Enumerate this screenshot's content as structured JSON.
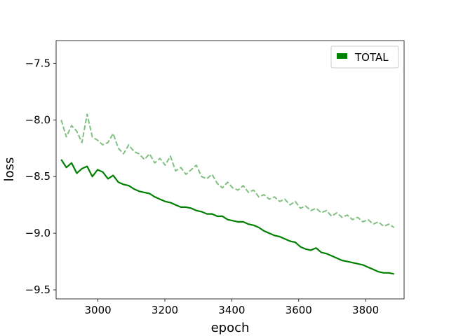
{
  "chart_data": {
    "type": "line",
    "title": "",
    "xlabel": "epoch",
    "ylabel": "loss",
    "xlim": [
      2875,
      3915
    ],
    "ylim": [
      -9.58,
      -7.3
    ],
    "xticks": [
      3000,
      3200,
      3400,
      3600,
      3800
    ],
    "yticks": [
      -9.5,
      -9.0,
      -8.5,
      -8.0,
      -7.5
    ],
    "xtick_labels": [
      "3000",
      "3200",
      "3400",
      "3600",
      "3800"
    ],
    "ytick_labels": [
      "−9.5",
      "−9.0",
      "−8.5",
      "−8.0",
      "−7.5"
    ],
    "grid": false,
    "legend": {
      "position": "top-right",
      "entries": [
        "TOTAL"
      ]
    },
    "series": [
      {
        "name": "TOTAL",
        "style": "solid",
        "color": "#008000",
        "x_start": 2890,
        "x_end": 3885,
        "values": [
          -8.35,
          -8.42,
          -8.38,
          -8.47,
          -8.43,
          -8.41,
          -8.5,
          -8.44,
          -8.46,
          -8.52,
          -8.49,
          -8.55,
          -8.57,
          -8.58,
          -8.61,
          -8.63,
          -8.64,
          -8.65,
          -8.68,
          -8.7,
          -8.72,
          -8.73,
          -8.75,
          -8.77,
          -8.77,
          -8.78,
          -8.8,
          -8.81,
          -8.83,
          -8.83,
          -8.85,
          -8.85,
          -8.88,
          -8.89,
          -8.9,
          -8.9,
          -8.92,
          -8.93,
          -8.95,
          -8.98,
          -9.0,
          -9.02,
          -9.03,
          -9.05,
          -9.07,
          -9.08,
          -9.12,
          -9.14,
          -9.15,
          -9.13,
          -9.17,
          -9.18,
          -9.2,
          -9.22,
          -9.24,
          -9.25,
          -9.26,
          -9.27,
          -9.28,
          -9.3,
          -9.32,
          -9.34,
          -9.35,
          -9.35,
          -9.36
        ]
      },
      {
        "style": "dashed",
        "color": "#80c080",
        "x_start": 2890,
        "x_end": 3885,
        "values": [
          -8.0,
          -8.15,
          -8.05,
          -8.1,
          -8.2,
          -7.95,
          -8.15,
          -8.18,
          -8.22,
          -8.2,
          -8.12,
          -8.25,
          -8.3,
          -8.22,
          -8.28,
          -8.3,
          -8.35,
          -8.3,
          -8.38,
          -8.34,
          -8.4,
          -8.32,
          -8.45,
          -8.42,
          -8.48,
          -8.44,
          -8.4,
          -8.5,
          -8.52,
          -8.48,
          -8.56,
          -8.6,
          -8.55,
          -8.6,
          -8.62,
          -8.58,
          -8.64,
          -8.62,
          -8.68,
          -8.66,
          -8.7,
          -8.68,
          -8.72,
          -8.7,
          -8.75,
          -8.72,
          -8.78,
          -8.76,
          -8.8,
          -8.78,
          -8.82,
          -8.8,
          -8.85,
          -8.82,
          -8.86,
          -8.84,
          -8.88,
          -8.86,
          -8.9,
          -8.88,
          -8.92,
          -8.9,
          -8.94,
          -8.92,
          -8.95
        ]
      }
    ]
  }
}
